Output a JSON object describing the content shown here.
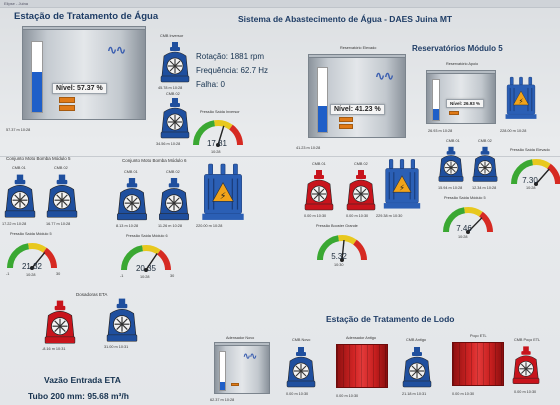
{
  "window": {
    "tab_text": "Elipse - Juina"
  },
  "header": {
    "system_title": "Sistema de Abastecimento de Água - DAES Juina MT",
    "eta_title": "Estação de Tratamento de Água",
    "reservoirs_title": "Reservatórios Módulo 5",
    "etl_title": "Estação de Tratamento de Lodo"
  },
  "eta_tank": {
    "nivel_label": "Nível: 57.37 %",
    "level_pct": 57.37,
    "flow_reading": "57.37 m 10:28"
  },
  "motor_info": {
    "cmb_label": "CMB Inversor",
    "rotacao": "Rotação: 1881 rpm",
    "frequencia": "Frequência: 62.7 Hz",
    "falha": "Falha: 0",
    "pump1_reading": "45.78 m 10:28",
    "pump2_label": "CMB 02",
    "pump2_reading": "34.56 m 10:28",
    "gauge_label": "Pressão Saída Inversor",
    "gauge_min": "0.25",
    "gauge_max": "19.67",
    "gauge_value": "17.81",
    "gauge_time": "10:28",
    "gauge_scale_low": "0",
    "gauge_scale_high": "30"
  },
  "reservoir_center": {
    "title": "Reservatório Elevado",
    "nivel_label": "Nível: 41.23 %",
    "level_pct": 41.23,
    "reading": "41.23 m 10:28"
  },
  "reservoir_right": {
    "title": "Reservatório Apoio",
    "nivel_label": "Nível: 26.93 %",
    "level_pct": 26.93,
    "reading": "26.93 m 10:28",
    "transformer_reading": "228.00 m 10:28"
  },
  "modulo5": {
    "group_label": "Conjunto Moto Bomba Módulo 5",
    "pump1_label": "CMB 01",
    "pump1_reading": "17.22 m 10:28",
    "pump2_label": "CMB 02",
    "pump2_reading": "16.77 m 10:28",
    "gauge_label": "Pressão Saída Módulo 5",
    "gauge_min": "0.22",
    "gauge_max": "23.67",
    "gauge_value": "21.32",
    "gauge_time": "10:28",
    "gauge_scale_low": "-1",
    "gauge_scale_high": "30"
  },
  "modulo6": {
    "group_label": "Conjunto Moto Bomba Módulo 6",
    "pump1_label": "CMB 01",
    "pump1_reading": "8.13 m 10:28",
    "pump2_label": "CMB 02",
    "pump2_reading": "11.26 m 10:28",
    "transformer_reading": "220.00 m 10:28",
    "gauge_label": "Pressão Saída Módulo 6",
    "gauge_min": "0.23",
    "gauge_max": "24.97",
    "gauge_value": "20.35",
    "gauge_time": "10:28",
    "gauge_scale_low": "-1",
    "gauge_scale_high": "30"
  },
  "booster": {
    "pump1_label": "CMB 01",
    "pump1_reading": "0.00 m 10:30",
    "pump2_label": "CMB 02",
    "pump2_reading": "0.00 m 10:30",
    "transformer_reading": "229.38 m 10:30",
    "gauge_label": "Pressão Booster Grande",
    "gauge_value": "5.32",
    "gauge_time": "10:30",
    "gauge_scale_low": "0",
    "gauge_scale_high": "10"
  },
  "right_pumps": {
    "pump1_label": "CMB 01",
    "pump1_reading": "15.94 m 10:28",
    "pump2_label": "CMB 02",
    "pump2_reading": "12.34 m 10:28",
    "gauge1_label": "Pressão Saída Módulo 5",
    "gauge1_value": "7.46",
    "gauge1_time": "10:28",
    "gauge2_label": "Pressão Saída Elevado",
    "gauge2_value": "7.30",
    "gauge2_time": "10:28",
    "gauge_scale_low": "0",
    "gauge_scale_high": "10"
  },
  "dosadoras": {
    "label": "Dosadoras ETA",
    "pump1_reading": "-8.16 m 10:31",
    "pump2_reading": "31.00 m 10:31"
  },
  "flow": {
    "title": "Vazão Entrada ETA",
    "value": "Tubo 200 mm: 95.68 m³/h"
  },
  "etl": {
    "tank1_label": "Adensador Novo",
    "tank1_reading": "62.37 m 10:28",
    "pump1_label": "CMB Novo",
    "pump1_reading": "0.00 m 10:30",
    "tank2_label": "Adensador Antigo",
    "tank2_reading": "0.00 m 10:30",
    "pump2_label": "CMB Antigo",
    "pump2_reading": "21.18 m 10:31",
    "tank3_label": "Poço ETL",
    "tank3_reading": "0.00 m 10:30",
    "pump3_label": "CMB Poço ETL",
    "pump3_reading": "0.00 m 10:30"
  },
  "colors": {
    "pump_on": "#1f4f9e",
    "pump_off": "#c8141c",
    "gauge_green": "#3aa832",
    "gauge_yellow": "#e8c81e",
    "gauge_red": "#d62a22",
    "tank_fill": "#1f5fc8"
  }
}
